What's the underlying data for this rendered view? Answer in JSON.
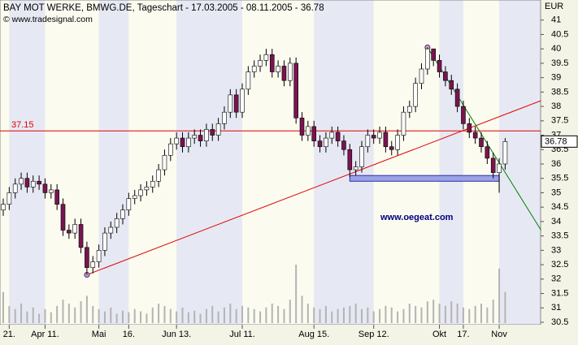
{
  "chart_data": {
    "type": "candlestick",
    "title": "BAY MOT WERKE, BMWG.DE, Tageschart - 17.03.2005 - 08.11.2005 - 36.78",
    "source": "© www.tradesignal.com",
    "annotation": "www.oegeat.com",
    "currency": "EUR",
    "last_value": 36.78,
    "hline": 37.15,
    "categories": [
      null,
      "21.",
      null,
      null,
      null,
      null,
      null,
      "Apr 11.",
      null,
      null,
      null,
      null,
      null,
      null,
      null,
      null,
      "Mai",
      null,
      null,
      null,
      null,
      "16.",
      null,
      null,
      null,
      null,
      null,
      null,
      null,
      "Jun 13.",
      null,
      null,
      null,
      null,
      null,
      null,
      null,
      null,
      null,
      null,
      "Jul 11.",
      null,
      null,
      null,
      null,
      null,
      null,
      null,
      null,
      null,
      null,
      null,
      "Aug 15.",
      null,
      null,
      null,
      null,
      null,
      null,
      null,
      null,
      null,
      "Sep 12.",
      null,
      null,
      null,
      null,
      null,
      null,
      null,
      null,
      null,
      null,
      "Okt",
      null,
      null,
      null,
      "17.",
      null,
      null,
      null,
      null,
      null,
      "Nov",
      null
    ],
    "open": [
      34.4,
      34.6,
      35.0,
      35.3,
      35.5,
      35.2,
      35.4,
      35.3,
      35.0,
      35.1,
      34.6,
      33.7,
      33.6,
      33.9,
      33.1,
      32.4,
      32.6,
      33.0,
      33.6,
      33.8,
      34.1,
      34.4,
      34.8,
      34.9,
      35.1,
      35.2,
      35.4,
      35.8,
      36.3,
      36.7,
      36.9,
      36.6,
      36.9,
      37.0,
      36.8,
      37.2,
      37.0,
      37.4,
      37.8,
      38.4,
      37.8,
      38.6,
      39.2,
      39.4,
      39.6,
      39.8,
      39.2,
      39.4,
      38.9,
      39.5,
      37.6,
      37.0,
      37.3,
      36.8,
      36.6,
      36.9,
      37.1,
      36.8,
      36.5,
      35.8,
      35.9,
      36.6,
      37.0,
      36.9,
      37.1,
      36.6,
      36.5,
      37.0,
      37.8,
      38.0,
      38.8,
      39.3,
      40.0,
      39.6,
      39.2,
      38.9,
      38.6,
      38.0,
      37.4,
      37.1,
      36.9,
      36.6,
      36.2,
      35.7,
      36.0
    ],
    "high": [
      34.8,
      35.2,
      35.5,
      35.7,
      35.7,
      35.6,
      35.6,
      35.5,
      35.3,
      35.3,
      34.8,
      33.9,
      34.1,
      34.1,
      33.3,
      32.8,
      33.2,
      33.8,
      34.0,
      34.3,
      34.6,
      35.0,
      35.1,
      35.3,
      35.4,
      35.6,
      36.0,
      36.5,
      36.9,
      37.1,
      37.1,
      37.1,
      37.2,
      37.2,
      37.4,
      37.4,
      37.6,
      38.0,
      38.6,
      38.6,
      38.8,
      39.4,
      39.6,
      39.8,
      40.0,
      40.0,
      39.6,
      39.6,
      39.7,
      39.7,
      37.8,
      37.5,
      37.5,
      37.0,
      37.1,
      37.3,
      37.3,
      37.0,
      36.7,
      36.1,
      36.8,
      37.2,
      37.2,
      37.3,
      37.3,
      36.8,
      37.2,
      38.0,
      38.2,
      39.0,
      39.5,
      40.05,
      40.0,
      39.8,
      39.4,
      39.1,
      38.8,
      38.2,
      37.6,
      37.3,
      37.1,
      36.8,
      36.4,
      36.2,
      36.9
    ],
    "low": [
      34.2,
      34.4,
      34.8,
      35.1,
      35.0,
      35.0,
      35.1,
      34.8,
      34.8,
      34.4,
      33.5,
      33.4,
      33.4,
      32.9,
      32.15,
      32.2,
      32.4,
      32.8,
      33.4,
      33.6,
      33.9,
      34.2,
      34.6,
      34.7,
      34.9,
      35.0,
      35.2,
      35.6,
      36.1,
      36.5,
      36.4,
      36.4,
      36.7,
      36.6,
      36.6,
      36.8,
      36.8,
      37.2,
      37.6,
      37.6,
      37.6,
      38.4,
      39.0,
      39.2,
      39.4,
      39.0,
      39.0,
      38.7,
      38.7,
      37.4,
      36.8,
      36.8,
      36.6,
      36.4,
      36.4,
      36.7,
      36.6,
      36.3,
      35.55,
      35.6,
      35.7,
      36.4,
      36.7,
      36.7,
      36.4,
      36.3,
      36.3,
      36.8,
      37.6,
      37.8,
      38.6,
      39.1,
      39.4,
      39.0,
      38.7,
      38.4,
      37.8,
      37.2,
      36.9,
      36.7,
      36.4,
      36.0,
      35.5,
      35.0,
      35.8
    ],
    "close": [
      34.6,
      35.0,
      35.3,
      35.5,
      35.2,
      35.4,
      35.3,
      35.0,
      35.1,
      34.6,
      33.7,
      33.6,
      33.9,
      33.1,
      32.4,
      32.6,
      33.0,
      33.6,
      33.8,
      34.1,
      34.4,
      34.8,
      34.9,
      35.1,
      35.2,
      35.4,
      35.8,
      36.3,
      36.7,
      36.9,
      36.6,
      36.9,
      37.0,
      36.8,
      37.2,
      37.0,
      37.4,
      37.8,
      38.4,
      37.8,
      38.6,
      39.2,
      39.4,
      39.6,
      39.8,
      39.2,
      39.4,
      38.9,
      39.5,
      37.6,
      37.0,
      37.3,
      36.8,
      36.6,
      36.9,
      37.1,
      36.8,
      36.5,
      35.8,
      35.9,
      36.6,
      37.0,
      36.9,
      37.1,
      36.6,
      36.5,
      37.0,
      37.8,
      38.0,
      38.8,
      39.3,
      40.0,
      39.6,
      39.2,
      38.9,
      38.6,
      38.0,
      37.4,
      37.1,
      36.9,
      36.6,
      36.2,
      35.7,
      36.0,
      36.78
    ],
    "volume": [
      40,
      22,
      18,
      25,
      15,
      20,
      12,
      18,
      14,
      22,
      30,
      25,
      20,
      28,
      35,
      22,
      18,
      15,
      20,
      12,
      16,
      14,
      18,
      15,
      12,
      20,
      25,
      22,
      18,
      15,
      20,
      14,
      16,
      12,
      18,
      22,
      15,
      20,
      25,
      18,
      22,
      20,
      18,
      15,
      20,
      25,
      22,
      18,
      30,
      75,
      35,
      25,
      20,
      18,
      22,
      15,
      18,
      20,
      22,
      25,
      18,
      20,
      15,
      18,
      22,
      20,
      15,
      18,
      25,
      22,
      20,
      28,
      30,
      25,
      22,
      28,
      25,
      20,
      18,
      22,
      25,
      20,
      30,
      70,
      40
    ],
    "ylim": [
      30.5,
      41.5
    ],
    "yticks": [
      30.5,
      31,
      31.5,
      32,
      32.5,
      33,
      33.5,
      34,
      34.5,
      35,
      35.5,
      36,
      36.5,
      37,
      37.5,
      38,
      38.5,
      39,
      39.5,
      40,
      40.5,
      41
    ],
    "trendlines": [
      {
        "color": "#e00000",
        "from": [
          14,
          32.15
        ],
        "to": [
          90,
          38.2
        ]
      },
      {
        "color": "#008000",
        "from": [
          71,
          40.05
        ],
        "to": [
          90,
          33.7
        ]
      }
    ],
    "box": {
      "color": "#9aa2e8",
      "from": [
        58,
        35.4
      ],
      "to": [
        83,
        35.6
      ]
    },
    "up_color": "#ffffff",
    "down_color": "#7a1450",
    "volume_color": "#b4b4b4",
    "hline_color": "#e00000"
  }
}
